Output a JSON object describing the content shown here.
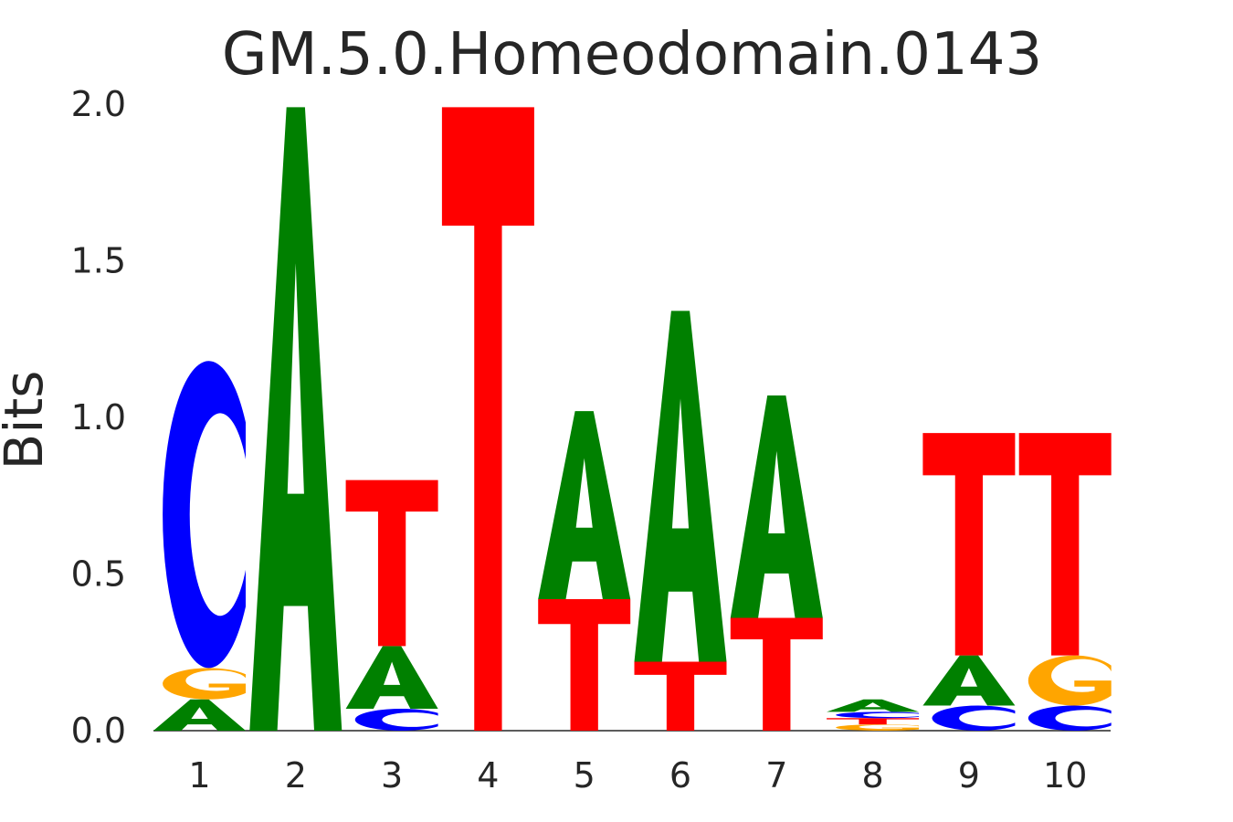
{
  "chart_data": {
    "type": "sequence-logo",
    "title": "GM.5.0.Homeodomain.0143",
    "xlabel": "",
    "ylabel": "Bits",
    "ylim": [
      0,
      2.0
    ],
    "yticks": [
      "0.0",
      "0.5",
      "1.0",
      "1.5",
      "2.0"
    ],
    "xticks": [
      "1",
      "2",
      "3",
      "4",
      "5",
      "6",
      "7",
      "8",
      "9",
      "10"
    ],
    "grid": false,
    "colors": {
      "A": "#008000",
      "C": "#0000ff",
      "G": "#ffa500",
      "T": "#ff0000"
    },
    "positions": [
      {
        "pos": "1",
        "stack": [
          {
            "letter": "A",
            "bits": 0.1
          },
          {
            "letter": "G",
            "bits": 0.1
          },
          {
            "letter": "C",
            "bits": 0.98
          }
        ]
      },
      {
        "pos": "2",
        "stack": [
          {
            "letter": "A",
            "bits": 1.99
          }
        ]
      },
      {
        "pos": "3",
        "stack": [
          {
            "letter": "C",
            "bits": 0.07
          },
          {
            "letter": "A",
            "bits": 0.2
          },
          {
            "letter": "T",
            "bits": 0.53
          }
        ]
      },
      {
        "pos": "4",
        "stack": [
          {
            "letter": "T",
            "bits": 1.99
          }
        ]
      },
      {
        "pos": "5",
        "stack": [
          {
            "letter": "T",
            "bits": 0.42
          },
          {
            "letter": "A",
            "bits": 0.6
          }
        ]
      },
      {
        "pos": "6",
        "stack": [
          {
            "letter": "T",
            "bits": 0.22
          },
          {
            "letter": "A",
            "bits": 1.12
          }
        ]
      },
      {
        "pos": "7",
        "stack": [
          {
            "letter": "T",
            "bits": 0.36
          },
          {
            "letter": "A",
            "bits": 0.71
          }
        ]
      },
      {
        "pos": "8",
        "stack": [
          {
            "letter": "G",
            "bits": 0.02
          },
          {
            "letter": "T",
            "bits": 0.02
          },
          {
            "letter": "C",
            "bits": 0.02
          },
          {
            "letter": "A",
            "bits": 0.04
          }
        ]
      },
      {
        "pos": "9",
        "stack": [
          {
            "letter": "C",
            "bits": 0.08
          },
          {
            "letter": "A",
            "bits": 0.16
          },
          {
            "letter": "T",
            "bits": 0.71
          }
        ]
      },
      {
        "pos": "10",
        "stack": [
          {
            "letter": "C",
            "bits": 0.08
          },
          {
            "letter": "G",
            "bits": 0.16
          },
          {
            "letter": "T",
            "bits": 0.71
          }
        ]
      }
    ]
  }
}
